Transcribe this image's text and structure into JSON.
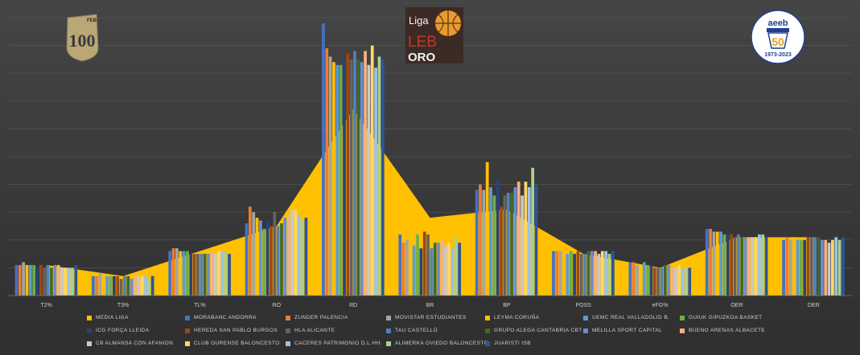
{
  "logos": {
    "feb": {
      "text": "100",
      "badge": "FEB"
    },
    "liga": {
      "line1": "Liga",
      "line2": "LEB",
      "line3": "ORO"
    },
    "aeeb": {
      "top": "aeeb",
      "num": "50",
      "years": "1973-2023"
    }
  },
  "colors": {
    "median": "#ffc000",
    "background": "#3a3a3a"
  },
  "chart_data": {
    "type": "bar",
    "categories": [
      "T2%",
      "T3%",
      "TL%",
      "RO",
      "RD",
      "BR",
      "BP",
      "POSS",
      "eFG%",
      "OER",
      "DER"
    ],
    "ylim": [
      0,
      1
    ],
    "grid": true,
    "legend_position": "bottom",
    "median": {
      "name": "MEDIA LIGA",
      "color": "#ffc000",
      "values": [
        0.11,
        0.07,
        0.16,
        0.25,
        0.67,
        0.28,
        0.31,
        0.15,
        0.1,
        0.21,
        0.21
      ]
    },
    "series": [
      {
        "name": "MORABANC ANDORRA",
        "color": "#4472c4",
        "values": [
          0.11,
          0.07,
          0.16,
          0.26,
          0.98,
          0.22,
          0.38,
          0.16,
          0.12,
          0.24,
          0.2
        ]
      },
      {
        "name": "ZUNDER PALENCIA",
        "color": "#ed7d31",
        "values": [
          0.11,
          0.07,
          0.17,
          0.32,
          0.89,
          0.19,
          0.4,
          0.16,
          0.12,
          0.24,
          0.21
        ]
      },
      {
        "name": "MOVISTAR ESTUDIANTES",
        "color": "#a5a5a5",
        "values": [
          0.12,
          0.08,
          0.17,
          0.3,
          0.86,
          0.2,
          0.38,
          0.16,
          0.11,
          0.23,
          0.2
        ]
      },
      {
        "name": "LEYMA CORUÑA",
        "color": "#ffc000",
        "values": [
          0.11,
          0.07,
          0.16,
          0.28,
          0.84,
          0.24,
          0.48,
          0.17,
          0.11,
          0.23,
          0.21
        ]
      },
      {
        "name": "UEMC REAL VALLADOLID B.",
        "color": "#5b9bd5",
        "values": [
          0.11,
          0.07,
          0.16,
          0.27,
          0.83,
          0.18,
          0.39,
          0.15,
          0.12,
          0.23,
          0.2
        ]
      },
      {
        "name": "GUIUK GIPUZKOA BASKET",
        "color": "#70ad47",
        "values": [
          0.11,
          0.07,
          0.16,
          0.24,
          0.83,
          0.22,
          0.36,
          0.16,
          0.11,
          0.22,
          0.2
        ]
      },
      {
        "name": "ICG FORÇA LLEIDA",
        "color": "#264478",
        "values": [
          0.1,
          0.07,
          0.15,
          0.27,
          0.85,
          0.17,
          0.42,
          0.15,
          0.11,
          0.22,
          0.2
        ]
      },
      {
        "name": "HEREDA SAN PABLO BURGOS",
        "color": "#9e480e",
        "values": [
          0.11,
          0.07,
          0.15,
          0.25,
          0.87,
          0.23,
          0.32,
          0.16,
          0.1,
          0.22,
          0.21
        ]
      },
      {
        "name": "HLA ALICANTE",
        "color": "#636363",
        "values": [
          0.1,
          0.06,
          0.15,
          0.3,
          0.85,
          0.22,
          0.36,
          0.15,
          0.1,
          0.21,
          0.21
        ]
      },
      {
        "name": "TAU CASTELLÓ",
        "color": "#4f81bd",
        "values": [
          0.11,
          0.07,
          0.15,
          0.25,
          0.88,
          0.17,
          0.37,
          0.15,
          0.1,
          0.22,
          0.21
        ]
      },
      {
        "name": "GRUPO ALEGA CANTABRIA CBT",
        "color": "#43682b",
        "values": [
          0.1,
          0.07,
          0.15,
          0.26,
          0.85,
          0.19,
          0.37,
          0.16,
          0.11,
          0.21,
          0.21
        ]
      },
      {
        "name": "MELILLA SPORT CAPITAL",
        "color": "#698ed0",
        "values": [
          0.11,
          0.06,
          0.15,
          0.28,
          0.84,
          0.19,
          0.39,
          0.16,
          0.11,
          0.21,
          0.2
        ]
      },
      {
        "name": "BUENO ARENAS ALBACETE",
        "color": "#f4b183",
        "values": [
          0.11,
          0.07,
          0.16,
          0.29,
          0.88,
          0.2,
          0.41,
          0.16,
          0.1,
          0.21,
          0.2
        ]
      },
      {
        "name": "CB ALMANSA CON AFANION",
        "color": "#c9c9c9",
        "values": [
          0.1,
          0.07,
          0.15,
          0.31,
          0.83,
          0.18,
          0.36,
          0.15,
          0.1,
          0.21,
          0.19
        ]
      },
      {
        "name": "CLUB OURENSE BALONCESTO",
        "color": "#ffd966",
        "values": [
          0.1,
          0.07,
          0.16,
          0.31,
          0.9,
          0.19,
          0.41,
          0.16,
          0.11,
          0.21,
          0.2
        ]
      },
      {
        "name": "CACERES PATRIMONIO D.L.HH.",
        "color": "#9dc3e6",
        "values": [
          0.1,
          0.07,
          0.16,
          0.29,
          0.82,
          0.17,
          0.39,
          0.16,
          0.1,
          0.22,
          0.21
        ]
      },
      {
        "name": "ALIMERKA OVIEDO BALONCESTO",
        "color": "#a9d18e",
        "values": [
          0.1,
          0.06,
          0.16,
          0.27,
          0.86,
          0.21,
          0.46,
          0.15,
          0.1,
          0.22,
          0.2
        ]
      },
      {
        "name": "JUARISTI ISB",
        "color": "#2e5597",
        "values": [
          0.11,
          0.07,
          0.15,
          0.28,
          0.85,
          0.19,
          0.4,
          0.16,
          0.1,
          0.21,
          0.21
        ]
      }
    ]
  }
}
